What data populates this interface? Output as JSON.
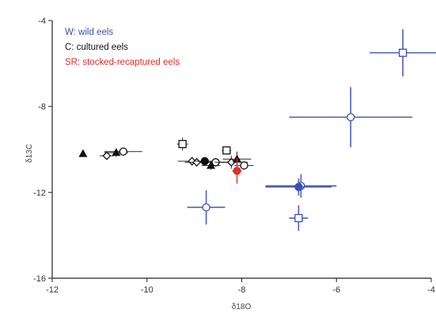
{
  "chart_data": {
    "type": "scatter",
    "title": "",
    "xlabel": "δ18O",
    "ylabel": "δ13C",
    "xlim": [
      -12,
      -4
    ],
    "ylim": [
      -16,
      -4
    ],
    "xticks": [
      -12,
      -10,
      -8,
      -6,
      -4
    ],
    "yticks": [
      -16,
      -12,
      -8,
      -4
    ],
    "grid": false,
    "legend": {
      "placement": "top-left",
      "entries": [
        {
          "text": "W: wild eels",
          "color": "#3a4fb4"
        },
        {
          "text": "C: cultured eels",
          "color": "#111111"
        },
        {
          "text": "SR: stocked-recaptured eels",
          "color": "#e0302a"
        }
      ]
    },
    "series": [
      {
        "name": "W",
        "color": "#3a4fb4",
        "points": [
          {
            "x": -4.6,
            "y": -5.5,
            "xerr": 0.7,
            "yerr": 1.1,
            "marker": "square"
          },
          {
            "x": -5.7,
            "y": -8.5,
            "xerr": 1.3,
            "yerr": 1.4,
            "marker": "circle"
          },
          {
            "x": -6.75,
            "y": -11.7,
            "xerr": 0.75,
            "yerr": 0.55,
            "marker": "circle"
          },
          {
            "x": -6.8,
            "y": -11.75,
            "xerr": 0.7,
            "yerr": 0.4,
            "marker": "circle-filled"
          },
          {
            "x": -6.8,
            "y": -13.2,
            "xerr": 0.2,
            "yerr": 0.6,
            "marker": "square"
          },
          {
            "x": -8.75,
            "y": -12.7,
            "xerr": 0.4,
            "yerr": 0.8,
            "marker": "circle"
          }
        ]
      },
      {
        "name": "C",
        "color": "#111111",
        "points": [
          {
            "x": -11.35,
            "y": -10.2,
            "xerr": 0.05,
            "yerr": 0.12,
            "marker": "triangle"
          },
          {
            "x": -10.85,
            "y": -10.3,
            "xerr": 0.15,
            "yerr": 0.12,
            "marker": "diamond"
          },
          {
            "x": -10.65,
            "y": -10.15,
            "xerr": 0.25,
            "yerr": 0.2,
            "marker": "triangle"
          },
          {
            "x": -10.5,
            "y": -10.1,
            "xerr": 0.4,
            "yerr": 0.15,
            "marker": "circle"
          },
          {
            "x": -9.25,
            "y": -9.75,
            "xerr": 0.12,
            "yerr": 0.3,
            "marker": "square"
          },
          {
            "x": -9.05,
            "y": -10.55,
            "xerr": 0.3,
            "yerr": 0.2,
            "marker": "diamond"
          },
          {
            "x": -8.95,
            "y": -10.6,
            "xerr": 0.25,
            "yerr": 0.2,
            "marker": "diamond"
          },
          {
            "x": -8.78,
            "y": -10.55,
            "xerr": 0.2,
            "yerr": 0.2,
            "marker": "circle-filled"
          },
          {
            "x": -8.65,
            "y": -10.75,
            "xerr": 0.2,
            "yerr": 0.2,
            "marker": "triangle"
          },
          {
            "x": -8.55,
            "y": -10.6,
            "xerr": 0.3,
            "yerr": 0.2,
            "marker": "circle"
          },
          {
            "x": -8.32,
            "y": -10.05,
            "xerr": 0.1,
            "yerr": 0.15,
            "marker": "square"
          },
          {
            "x": -8.22,
            "y": -10.6,
            "xerr": 0.35,
            "yerr": 0.3,
            "marker": "diamond"
          },
          {
            "x": -8.1,
            "y": -10.45,
            "xerr": 0.3,
            "yerr": 0.35,
            "marker": "triangle"
          },
          {
            "x": -7.95,
            "y": -10.75,
            "xerr": 0.2,
            "yerr": 0.2,
            "marker": "circle"
          }
        ]
      },
      {
        "name": "SR",
        "color": "#e0302a",
        "points": [
          {
            "x": -8.1,
            "y": -11.0,
            "xerr": 0.1,
            "yerr": 0.6,
            "marker": "circle-filled"
          }
        ]
      }
    ]
  }
}
